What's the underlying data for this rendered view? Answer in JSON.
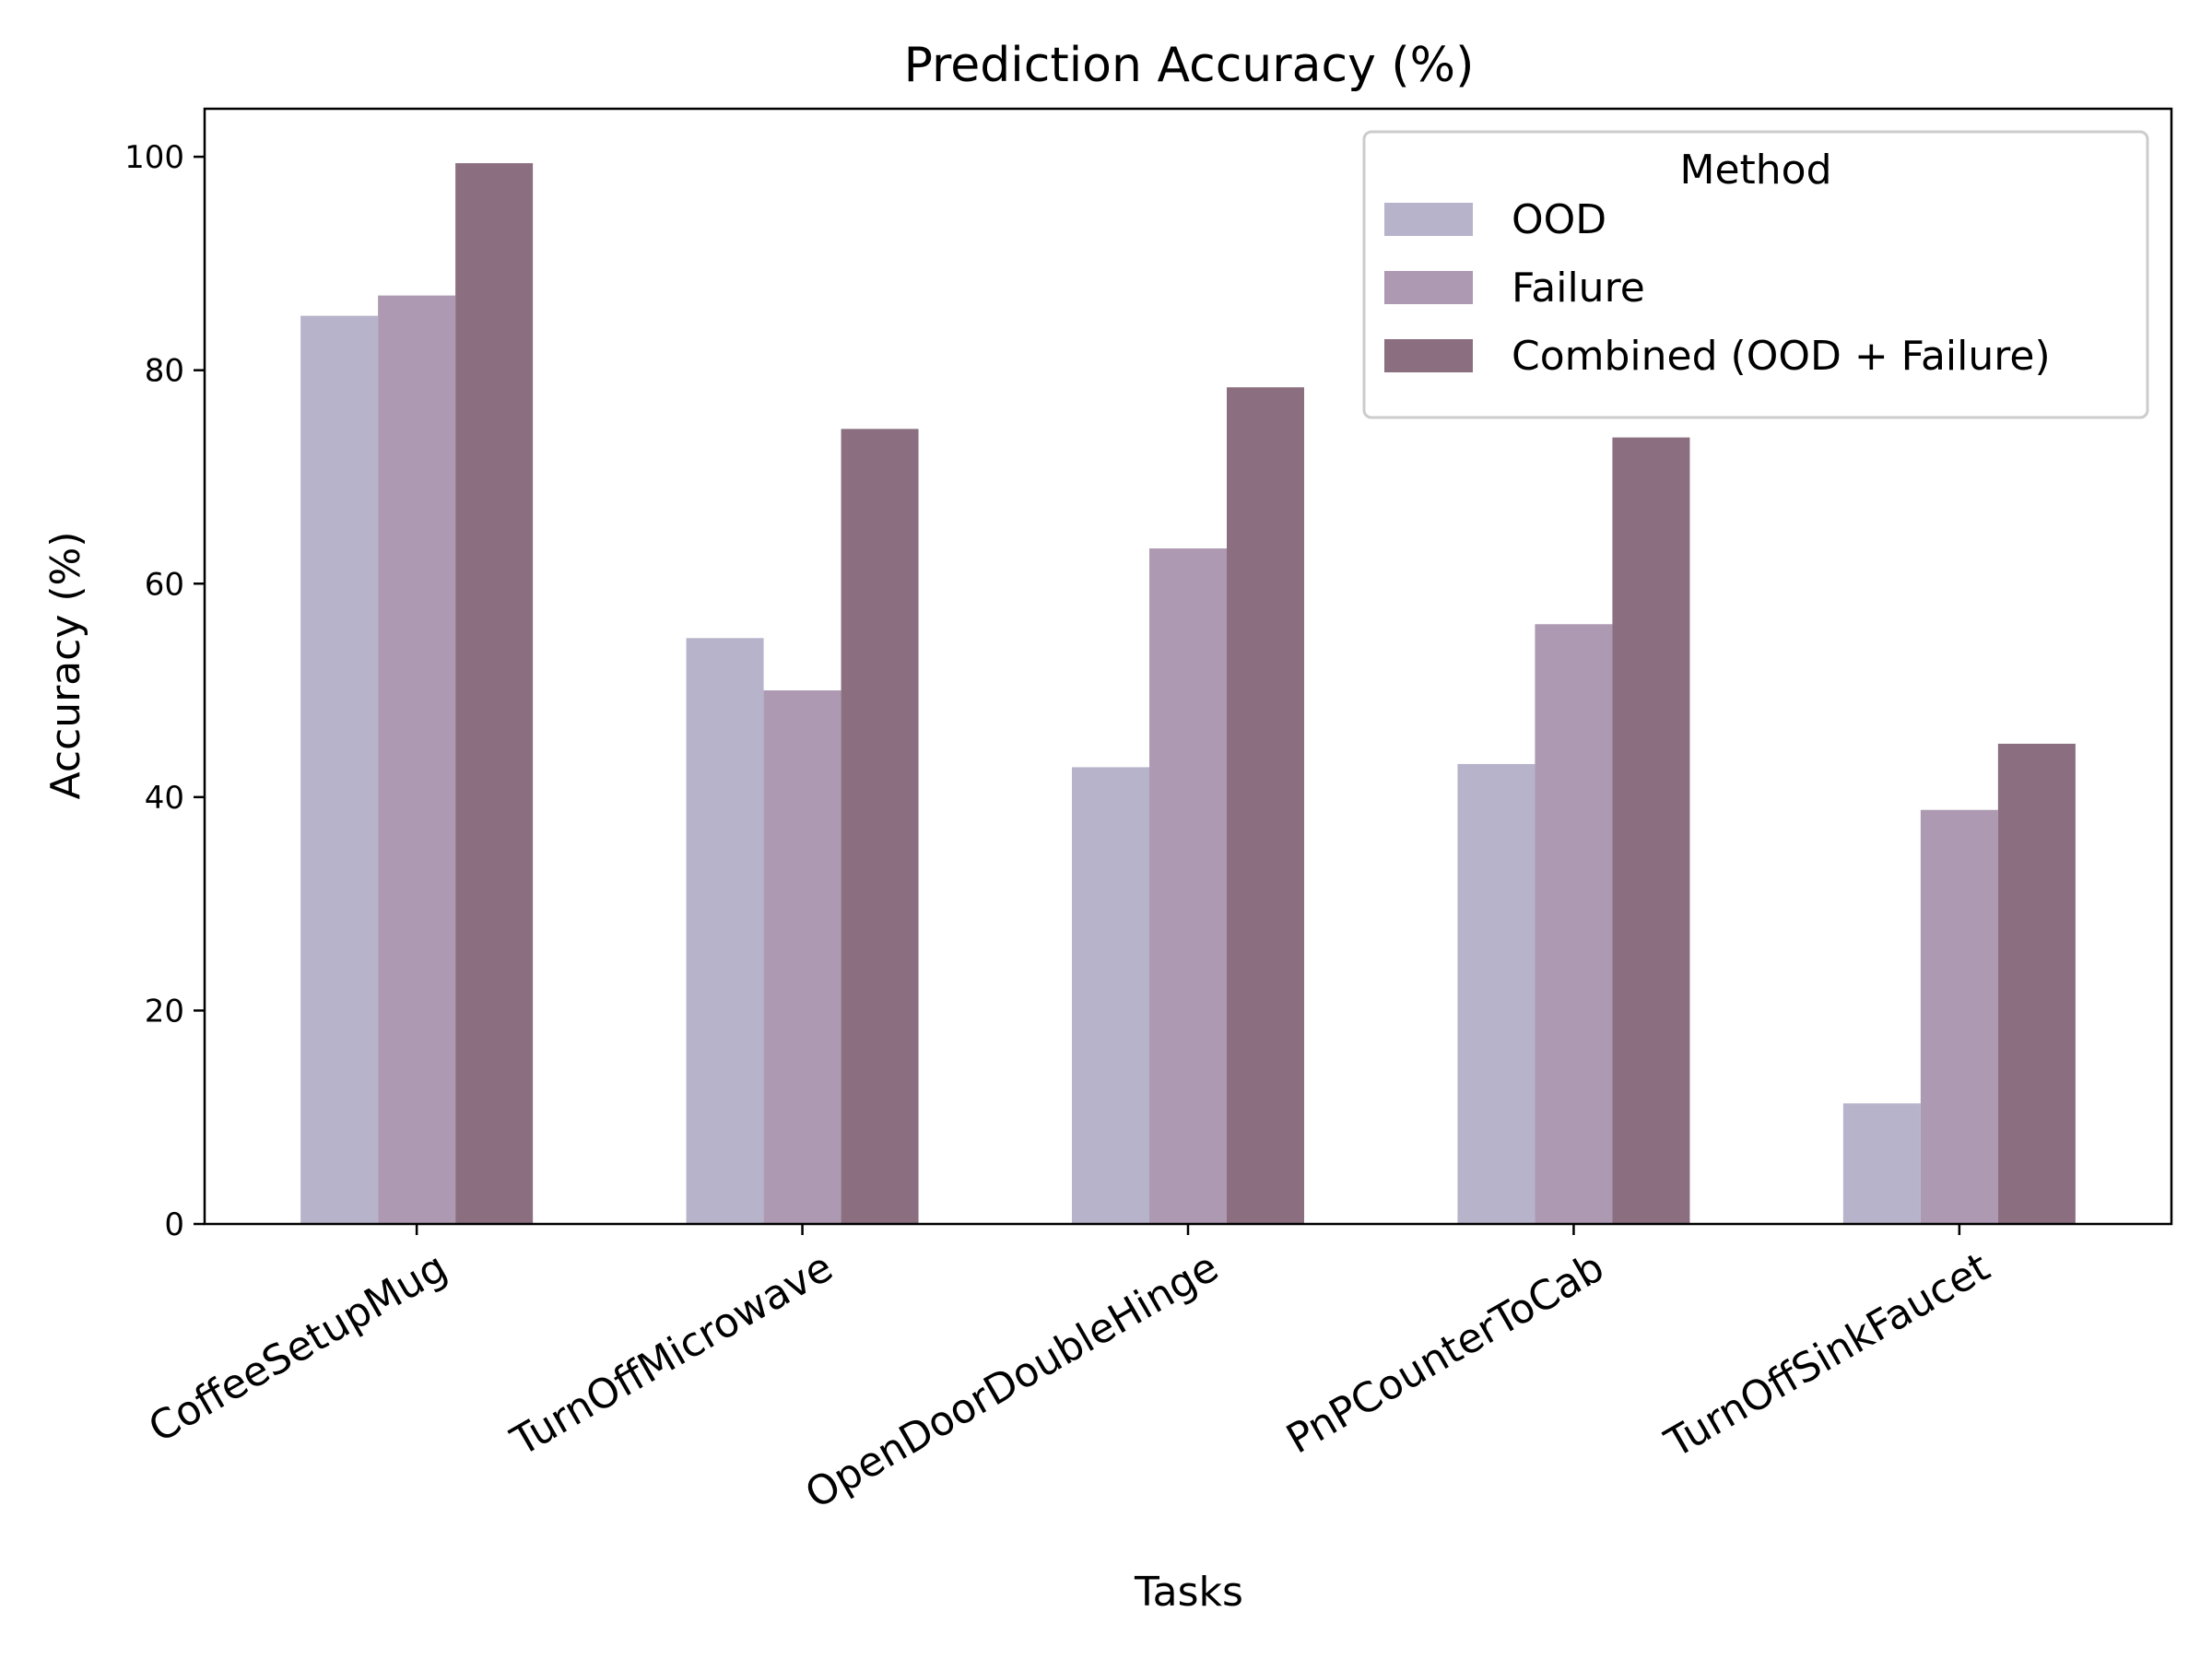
{
  "chart_data": {
    "type": "bar",
    "title": "Prediction Accuracy (%)",
    "xlabel": "Tasks",
    "ylabel": "Accuracy (%)",
    "ylim": [
      0,
      104.5
    ],
    "yticks": [
      0,
      20,
      40,
      60,
      80,
      100
    ],
    "categories": [
      "CoffeeSetupMug",
      "TurnOffMicrowave",
      "OpenDoorDoubleHinge",
      "PnPCounterToCab",
      "TurnOffSinkFaucet"
    ],
    "series": [
      {
        "name": "OOD",
        "color": "#b7b3cb",
        "values": [
          85.1,
          54.9,
          42.8,
          43.1,
          11.3
        ]
      },
      {
        "name": "Failure",
        "color": "#ad99b2",
        "values": [
          87.0,
          50.0,
          63.3,
          56.2,
          38.8
        ]
      },
      {
        "name": "Combined (OOD + Failure)",
        "color": "#8b6f80",
        "values": [
          99.4,
          74.5,
          78.4,
          73.7,
          45.0
        ]
      }
    ],
    "legend": {
      "title": "Method",
      "position": "upper-right"
    },
    "grid": false
  }
}
